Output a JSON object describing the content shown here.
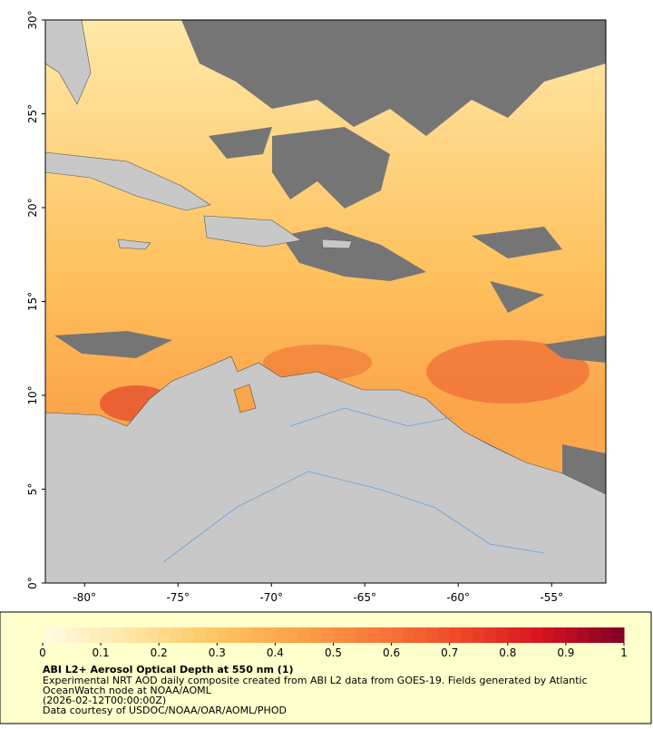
{
  "map": {
    "xlim": [
      -82.1,
      -52.1
    ],
    "ylim": [
      0,
      30
    ],
    "lat_ticks": [
      {
        "value": 0,
        "label": "0°"
      },
      {
        "value": 5,
        "label": "5°"
      },
      {
        "value": 10,
        "label": "10°"
      },
      {
        "value": 15,
        "label": "15°"
      },
      {
        "value": 20,
        "label": "20°"
      },
      {
        "value": 25,
        "label": "25°"
      },
      {
        "value": 30,
        "label": "30°"
      }
    ],
    "lon_ticks": [
      {
        "value": -80,
        "label": "-80°"
      },
      {
        "value": -75,
        "label": "-75°"
      },
      {
        "value": -70,
        "label": "-70°"
      },
      {
        "value": -65,
        "label": "-65°"
      },
      {
        "value": -60,
        "label": "-60°"
      },
      {
        "value": -55,
        "label": "-55°"
      }
    ]
  },
  "colorbar": {
    "title": "ABI L2+ Aerosol Optical Depth at 550 nm (1)",
    "range": [
      0,
      1
    ],
    "ticks": [
      0,
      0.1,
      0.2,
      0.3,
      0.4,
      0.5,
      0.6,
      0.7,
      0.8,
      0.9,
      1
    ],
    "colors": [
      "#fffbe2",
      "#fee8a8",
      "#fec966",
      "#fca44a",
      "#f97a3a",
      "#ef4a28",
      "#d7131f",
      "#800026"
    ]
  },
  "description": [
    "Experimental NRT AOD daily composite created from ABI L2 data from GOES-19. Fields generated by Atlantic",
    "OceanWatch node at NOAA/AOML",
    "(2026-02-12T00:00:00Z)",
    "Data courtesy of USDOC/NOAA/OAR/AOML/PHOD"
  ]
}
